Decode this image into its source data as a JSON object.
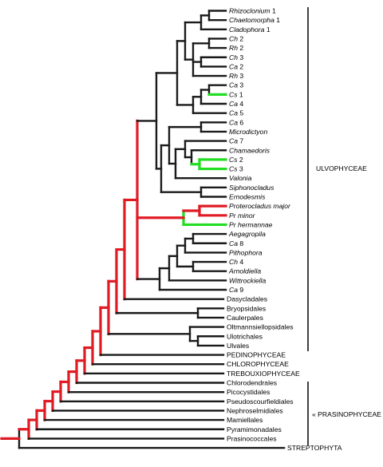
{
  "tree": {
    "leaves": [
      {
        "name": "Rhizoclonium",
        "suffix": " 1",
        "italic": true
      },
      {
        "name": "Chaetomorpha",
        "suffix": " 1",
        "italic": true
      },
      {
        "name": "Cladophora",
        "suffix": " 1",
        "italic": true
      },
      {
        "name": "Ch",
        "suffix": " 2",
        "italic": true
      },
      {
        "name": "Rh",
        "suffix": " 2",
        "italic": true
      },
      {
        "name": "Ch",
        "suffix": " 3",
        "italic": true
      },
      {
        "name": "Ca",
        "suffix": " 2",
        "italic": true
      },
      {
        "name": "Rh",
        "suffix": " 3",
        "italic": true
      },
      {
        "name": "Ca",
        "suffix": " 3",
        "italic": true
      },
      {
        "name": "Cs",
        "suffix": " 1",
        "italic": true
      },
      {
        "name": "Ca",
        "suffix": " 4",
        "italic": true
      },
      {
        "name": "Ca",
        "suffix": " 5",
        "italic": true
      },
      {
        "name": "Ca",
        "suffix": " 6",
        "italic": true
      },
      {
        "name": "Microdictyon",
        "suffix": "",
        "italic": true
      },
      {
        "name": "Ca",
        "suffix": " 7",
        "italic": true
      },
      {
        "name": "Chamaedoris",
        "suffix": "",
        "italic": true
      },
      {
        "name": "Cs",
        "suffix": " 2",
        "italic": true
      },
      {
        "name": "Cs",
        "suffix": " 3",
        "italic": true
      },
      {
        "name": "Valonia",
        "suffix": "",
        "italic": true
      },
      {
        "name": "Siphonocladus",
        "suffix": "",
        "italic": true
      },
      {
        "name": "Ernodesmis",
        "suffix": "",
        "italic": true
      },
      {
        "name": "Proterocladus major",
        "suffix": "",
        "italic": true
      },
      {
        "name": "Pr  minor",
        "suffix": "",
        "italic": true
      },
      {
        "name": "Pr  hermannae",
        "suffix": "",
        "italic": true
      },
      {
        "name": "Aegagropila",
        "suffix": "",
        "italic": true
      },
      {
        "name": "Ca",
        "suffix": " 8",
        "italic": true
      },
      {
        "name": "Pithophora",
        "suffix": "",
        "italic": true
      },
      {
        "name": "Ch",
        "suffix": " 4",
        "italic": true
      },
      {
        "name": "Arnoldiella",
        "suffix": "",
        "italic": true
      },
      {
        "name": "Wittrockiella",
        "suffix": "",
        "italic": true
      },
      {
        "name": "Ca",
        "suffix": " 9",
        "italic": true
      },
      {
        "name": "Dasycladales",
        "suffix": "",
        "italic": false
      },
      {
        "name": "Bryopsidales",
        "suffix": "",
        "italic": false
      },
      {
        "name": "Caulerpales",
        "suffix": "",
        "italic": false
      },
      {
        "name": "Oltmannsiellopsidales",
        "suffix": "",
        "italic": false
      },
      {
        "name": "Ulotrichales",
        "suffix": "",
        "italic": false
      },
      {
        "name": "Ulvales",
        "suffix": "",
        "italic": false
      },
      {
        "name": "PEDINOPHYCEAE",
        "suffix": "",
        "italic": false
      },
      {
        "name": "CHLOROPHYCEAE",
        "suffix": "",
        "italic": false
      },
      {
        "name": "TREBOUXIOPHYCEAE",
        "suffix": "",
        "italic": false
      },
      {
        "name": "Chlorodendrales",
        "suffix": "",
        "italic": false
      },
      {
        "name": "Picocystidales",
        "suffix": "",
        "italic": false
      },
      {
        "name": "Pseudoscourfieldiales",
        "suffix": "",
        "italic": false
      },
      {
        "name": "Nephroselmidiales",
        "suffix": "",
        "italic": false
      },
      {
        "name": "Mamiellales",
        "suffix": "",
        "italic": false
      },
      {
        "name": "Pyramimonadales",
        "suffix": "",
        "italic": false
      },
      {
        "name": "Prasinococcales",
        "suffix": "",
        "italic": false
      },
      {
        "name": "STREPTOPHYTA",
        "suffix": "",
        "italic": false
      }
    ],
    "groups": [
      {
        "name": "ULVOPHYCEAE"
      },
      {
        "name": "« PRASINOPHYCEAE »"
      }
    ],
    "colors": {
      "default": "#1a1a1a",
      "highlight_red": "#e01b24",
      "highlight_green": "#22dd22"
    }
  }
}
